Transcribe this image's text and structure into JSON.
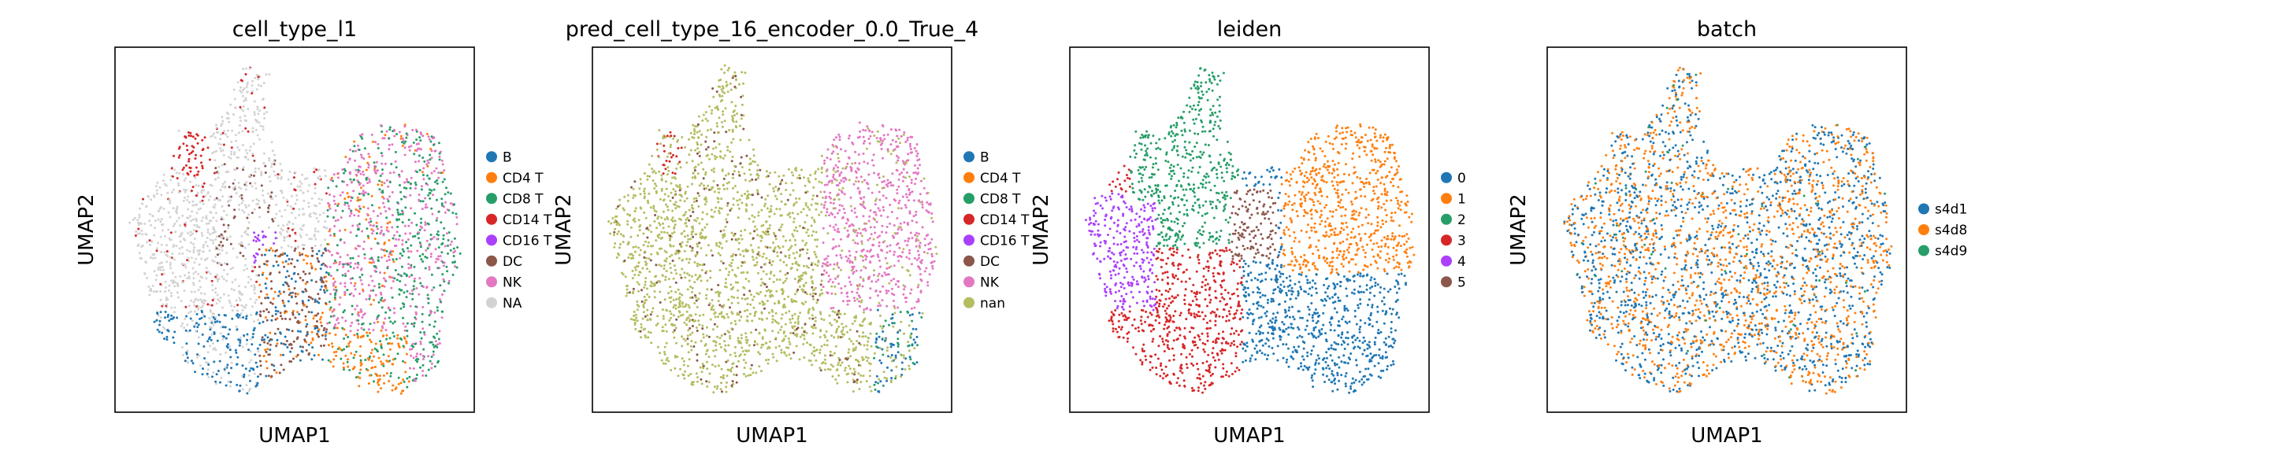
{
  "chart_data": [
    {
      "type": "scatter",
      "title": "cell_type_l1",
      "xlabel": "UMAP1",
      "ylabel": "UMAP2",
      "grid": false,
      "legend": "right",
      "categories": [
        "B",
        "CD4 T",
        "CD8 T",
        "CD14 T",
        "CD16 T",
        "DC",
        "NK",
        "NA"
      ],
      "colors": [
        "#1f77b4",
        "#ff7f0e",
        "#279e68",
        "#d62728",
        "#aa40fc",
        "#8c564b",
        "#e377c2",
        "#d3d3d3"
      ]
    },
    {
      "type": "scatter",
      "title": "pred_cell_type_16_encoder_0.0_True_4",
      "xlabel": "UMAP1",
      "ylabel": "UMAP2",
      "grid": false,
      "legend": "right",
      "categories": [
        "B",
        "CD4 T",
        "CD8 T",
        "CD14 T",
        "CD16 T",
        "DC",
        "NK",
        "nan"
      ],
      "colors": [
        "#1f77b4",
        "#ff7f0e",
        "#279e68",
        "#d62728",
        "#aa40fc",
        "#8c564b",
        "#e377c2",
        "#b5bd61"
      ]
    },
    {
      "type": "scatter",
      "title": "leiden",
      "xlabel": "UMAP1",
      "ylabel": "UMAP2",
      "grid": false,
      "legend": "right",
      "categories": [
        "0",
        "1",
        "2",
        "3",
        "4",
        "5"
      ],
      "colors": [
        "#1f77b4",
        "#ff7f0e",
        "#279e68",
        "#d62728",
        "#aa40fc",
        "#8c564b"
      ]
    },
    {
      "type": "scatter",
      "title": "batch",
      "xlabel": "UMAP1",
      "ylabel": "UMAP2",
      "grid": false,
      "legend": "right",
      "categories": [
        "s4d1",
        "s4d8",
        "s4d9"
      ],
      "colors": [
        "#1f77b4",
        "#ff7f0e",
        "#279e68"
      ]
    }
  ]
}
